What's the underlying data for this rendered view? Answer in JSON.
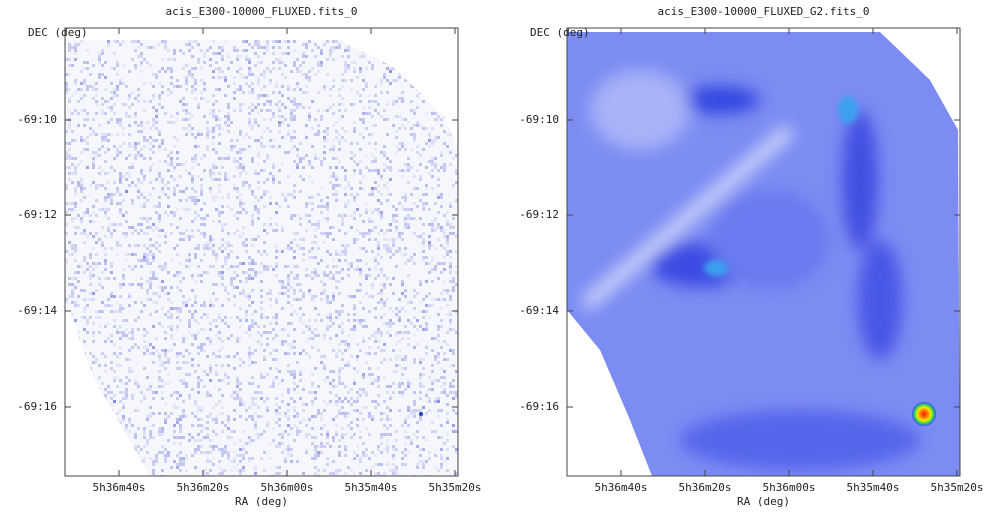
{
  "panels": [
    {
      "title": "acis_E300-10000_FLUXED.fits_0",
      "y_axis_label": "DEC (deg)",
      "x_axis_label": "RA (deg)",
      "yticks": [
        "-69:10",
        "-69:12",
        "-69:14",
        "-69:16"
      ],
      "xticks": [
        "5h36m40s",
        "5h36m20s",
        "5h36m00s",
        "5h35m40s",
        "5h35m20s"
      ]
    },
    {
      "title": "acis_E300-10000_FLUXED_G2.fits_0",
      "y_axis_label": "DEC (deg)",
      "x_axis_label": "RA (deg)",
      "yticks": [
        "-69:10",
        "-69:12",
        "-69:14",
        "-69:16"
      ],
      "xticks": [
        "5h36m40s",
        "5h36m20s",
        "5h36m00s",
        "5h35m40s",
        "5h35m20s"
      ]
    }
  ]
}
